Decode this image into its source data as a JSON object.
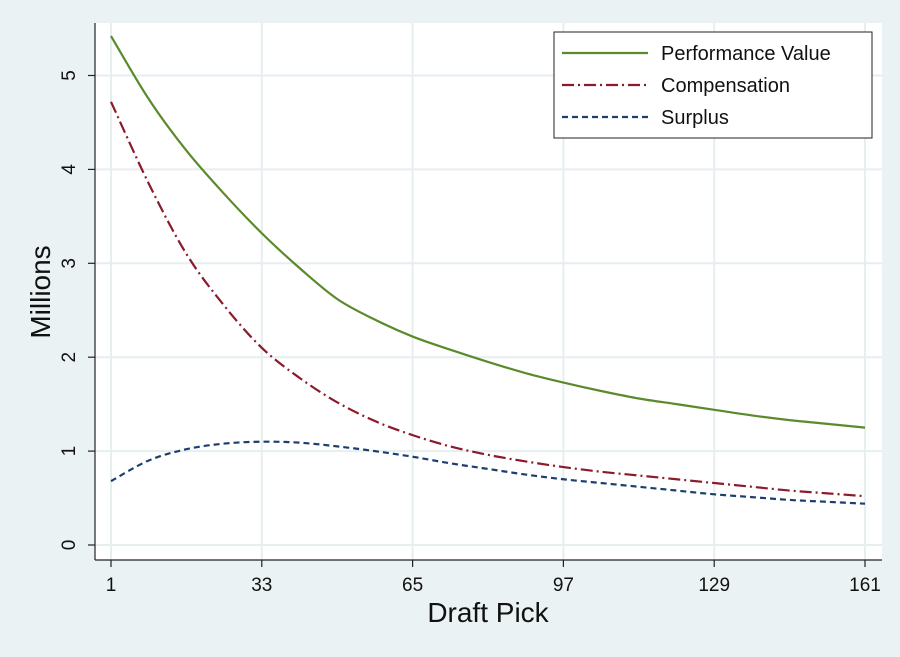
{
  "chart_data": {
    "type": "line",
    "xlabel": "Draft Pick",
    "ylabel": "Millions",
    "xlim": [
      1,
      161
    ],
    "ylim": [
      0,
      5.5
    ],
    "xticks": [
      1,
      33,
      65,
      97,
      129,
      161
    ],
    "yticks": [
      0,
      1,
      2,
      3,
      4,
      5
    ],
    "grid": true,
    "legend_position": "top-right",
    "series": [
      {
        "name": "Performance Value",
        "color": "#5a8a2b",
        "style": "solid",
        "x": [
          1,
          9,
          17,
          25,
          33,
          41,
          49,
          57,
          65,
          73,
          81,
          89,
          97,
          105,
          113,
          121,
          129,
          137,
          145,
          153,
          161
        ],
        "y": [
          5.42,
          4.75,
          4.2,
          3.74,
          3.32,
          2.95,
          2.62,
          2.4,
          2.22,
          2.08,
          1.95,
          1.83,
          1.73,
          1.64,
          1.56,
          1.5,
          1.44,
          1.38,
          1.33,
          1.29,
          1.25
        ]
      },
      {
        "name": "Compensation",
        "color": "#8b1a2b",
        "style": "dashdot",
        "x": [
          1,
          9,
          17,
          25,
          33,
          41,
          49,
          57,
          65,
          73,
          81,
          89,
          97,
          105,
          113,
          121,
          129,
          137,
          145,
          153,
          161
        ],
        "y": [
          4.72,
          3.85,
          3.1,
          2.55,
          2.1,
          1.78,
          1.52,
          1.32,
          1.17,
          1.05,
          0.96,
          0.89,
          0.83,
          0.78,
          0.74,
          0.7,
          0.66,
          0.62,
          0.58,
          0.55,
          0.52
        ]
      },
      {
        "name": "Surplus",
        "color": "#1c3f6e",
        "style": "dashed",
        "x": [
          1,
          9,
          17,
          25,
          33,
          41,
          49,
          57,
          65,
          73,
          81,
          89,
          97,
          105,
          113,
          121,
          129,
          137,
          145,
          153,
          161
        ],
        "y": [
          0.68,
          0.9,
          1.02,
          1.08,
          1.1,
          1.09,
          1.05,
          1.0,
          0.94,
          0.87,
          0.81,
          0.75,
          0.7,
          0.66,
          0.62,
          0.58,
          0.54,
          0.51,
          0.48,
          0.46,
          0.44
        ]
      }
    ]
  },
  "colors": {
    "page_background": "#eaf2f3",
    "plot_background": "#ffffff",
    "grid": "#e6eef0"
  }
}
